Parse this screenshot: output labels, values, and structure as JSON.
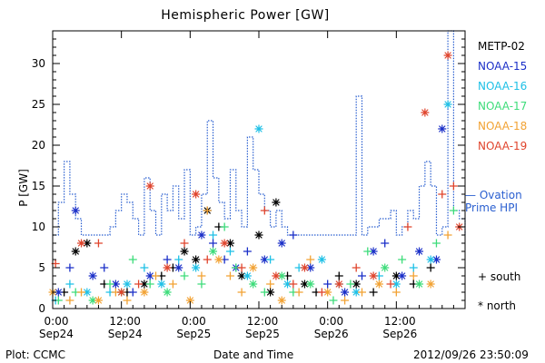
{
  "title": "Hemispheric Power [GW]",
  "ylabel": "P [GW]",
  "xlabel": "Date and Time",
  "plot_credit": "Plot: CCMC",
  "timestamp": "2012/09/26 23:50:09",
  "legend": {
    "satellites": [
      {
        "name": "METP-02",
        "color": "#000000"
      },
      {
        "name": "NOAA-15",
        "color": "#1a2fc8"
      },
      {
        "name": "NOAA-16",
        "color": "#1ec0e6"
      },
      {
        "name": "NOAA-17",
        "color": "#3ddc7a"
      },
      {
        "name": "NOAA-18",
        "color": "#f2a233"
      },
      {
        "name": "NOAA-19",
        "color": "#e0442c"
      }
    ],
    "ovation_line1": "— Ovation",
    "ovation_line2": "Prime HPI",
    "ovation_color": "#2a5fd0",
    "south": "+ south",
    "north": "* north"
  },
  "chart_data": {
    "type": "scatter",
    "title": "Hemispheric Power [GW]",
    "xlabel": "Date and Time",
    "ylabel": "P [GW]",
    "xlim": [
      0,
      72
    ],
    "ylim": [
      0,
      34
    ],
    "x_unit": "hours since 2012-09-24 00:00",
    "xticks": [
      {
        "x": 0,
        "line1": "0:00",
        "line2": "Sep24"
      },
      {
        "x": 12,
        "line1": "12:00",
        "line2": "Sep24"
      },
      {
        "x": 24,
        "line1": "0:00",
        "line2": "Sep25"
      },
      {
        "x": 36,
        "line1": "12:00",
        "line2": "Sep25"
      },
      {
        "x": 48,
        "line1": "0:00",
        "line2": "Sep26"
      },
      {
        "x": 60,
        "line1": "12:00",
        "line2": "Sep26"
      }
    ],
    "yticks": [
      0,
      5,
      10,
      15,
      20,
      25,
      30
    ],
    "ovation_prime_hpi": {
      "name": "Ovation Prime HPI",
      "x": [
        0,
        1,
        2,
        3,
        4,
        5,
        6,
        7,
        8,
        9,
        10,
        11,
        12,
        13,
        14,
        15,
        16,
        17,
        18,
        19,
        20,
        21,
        22,
        23,
        24,
        25,
        26,
        27,
        28,
        29,
        30,
        31,
        32,
        33,
        34,
        35,
        36,
        37,
        38,
        39,
        40,
        41,
        42,
        43,
        44,
        45,
        46,
        47,
        48,
        49,
        50,
        51,
        52,
        53,
        54,
        55,
        56,
        57,
        58,
        59,
        60,
        61,
        62,
        63,
        64,
        65,
        66,
        67,
        68,
        69,
        70,
        71,
        72
      ],
      "y": [
        9,
        13,
        18,
        14,
        11,
        9,
        9,
        9,
        9,
        9,
        10,
        12,
        14,
        13,
        11,
        9,
        16,
        12,
        9,
        14,
        12,
        15,
        11,
        17,
        9,
        10,
        14,
        23,
        16,
        13,
        11,
        17,
        12,
        10,
        21,
        17,
        14,
        12,
        10,
        12,
        10,
        9,
        9,
        9,
        9,
        9,
        9,
        9,
        9,
        9,
        9,
        9,
        9,
        26,
        9,
        10,
        10,
        11,
        11,
        12,
        9,
        10,
        12,
        11,
        15,
        18,
        15,
        9,
        10,
        34,
        12,
        11,
        9
      ]
    },
    "series": [
      {
        "name": "METP-02",
        "color": "#000000",
        "points": [
          {
            "x": 2,
            "y": 2,
            "h": "south"
          },
          {
            "x": 4,
            "y": 7,
            "h": "north"
          },
          {
            "x": 6,
            "y": 8,
            "h": "north"
          },
          {
            "x": 9,
            "y": 3,
            "h": "south"
          },
          {
            "x": 13,
            "y": 2,
            "h": "south"
          },
          {
            "x": 16,
            "y": 3,
            "h": "north"
          },
          {
            "x": 19,
            "y": 4,
            "h": "south"
          },
          {
            "x": 21,
            "y": 5,
            "h": "south"
          },
          {
            "x": 23,
            "y": 7,
            "h": "north"
          },
          {
            "x": 25,
            "y": 6,
            "h": "north"
          },
          {
            "x": 27,
            "y": 12,
            "h": "north"
          },
          {
            "x": 29,
            "y": 10,
            "h": "south"
          },
          {
            "x": 31,
            "y": 8,
            "h": "north"
          },
          {
            "x": 33,
            "y": 4,
            "h": "north"
          },
          {
            "x": 36,
            "y": 9,
            "h": "north"
          },
          {
            "x": 38,
            "y": 2,
            "h": "north"
          },
          {
            "x": 39,
            "y": 13,
            "h": "north"
          },
          {
            "x": 41,
            "y": 4,
            "h": "south"
          },
          {
            "x": 44,
            "y": 3,
            "h": "north"
          },
          {
            "x": 46,
            "y": 2,
            "h": "south"
          },
          {
            "x": 50,
            "y": 4,
            "h": "south"
          },
          {
            "x": 53,
            "y": 3,
            "h": "north"
          },
          {
            "x": 56,
            "y": 2,
            "h": "south"
          },
          {
            "x": 60,
            "y": 4,
            "h": "north"
          },
          {
            "x": 63,
            "y": 3,
            "h": "south"
          },
          {
            "x": 66,
            "y": 5,
            "h": "south"
          }
        ]
      },
      {
        "name": "NOAA-15",
        "color": "#1a2fc8",
        "points": [
          {
            "x": 1,
            "y": 2,
            "h": "north"
          },
          {
            "x": 3,
            "y": 5,
            "h": "south"
          },
          {
            "x": 4,
            "y": 12,
            "h": "north"
          },
          {
            "x": 7,
            "y": 4,
            "h": "north"
          },
          {
            "x": 9,
            "y": 5,
            "h": "south"
          },
          {
            "x": 11,
            "y": 3,
            "h": "north"
          },
          {
            "x": 14,
            "y": 2,
            "h": "south"
          },
          {
            "x": 17,
            "y": 4,
            "h": "north"
          },
          {
            "x": 20,
            "y": 6,
            "h": "south"
          },
          {
            "x": 22,
            "y": 5,
            "h": "north"
          },
          {
            "x": 26,
            "y": 9,
            "h": "north"
          },
          {
            "x": 28,
            "y": 8,
            "h": "south"
          },
          {
            "x": 30,
            "y": 6,
            "h": "south"
          },
          {
            "x": 32,
            "y": 5,
            "h": "north"
          },
          {
            "x": 34,
            "y": 7,
            "h": "south"
          },
          {
            "x": 37,
            "y": 6,
            "h": "north"
          },
          {
            "x": 40,
            "y": 8,
            "h": "north"
          },
          {
            "x": 42,
            "y": 9,
            "h": "south"
          },
          {
            "x": 45,
            "y": 5,
            "h": "north"
          },
          {
            "x": 48,
            "y": 3,
            "h": "south"
          },
          {
            "x": 51,
            "y": 2,
            "h": "north"
          },
          {
            "x": 54,
            "y": 4,
            "h": "south"
          },
          {
            "x": 56,
            "y": 7,
            "h": "north"
          },
          {
            "x": 58,
            "y": 8,
            "h": "south"
          },
          {
            "x": 61,
            "y": 4,
            "h": "north"
          },
          {
            "x": 64,
            "y": 7,
            "h": "north"
          },
          {
            "x": 67,
            "y": 6,
            "h": "north"
          },
          {
            "x": 68,
            "y": 22,
            "h": "north"
          }
        ]
      },
      {
        "name": "NOAA-16",
        "color": "#1ec0e6",
        "points": [
          {
            "x": 0.5,
            "y": 1,
            "h": "south"
          },
          {
            "x": 3,
            "y": 3,
            "h": "south"
          },
          {
            "x": 6,
            "y": 2,
            "h": "north"
          },
          {
            "x": 10,
            "y": 2,
            "h": "south"
          },
          {
            "x": 13,
            "y": 3,
            "h": "north"
          },
          {
            "x": 16,
            "y": 5,
            "h": "south"
          },
          {
            "x": 19,
            "y": 3,
            "h": "north"
          },
          {
            "x": 22,
            "y": 6,
            "h": "south"
          },
          {
            "x": 25,
            "y": 5,
            "h": "north"
          },
          {
            "x": 28,
            "y": 9,
            "h": "south"
          },
          {
            "x": 31,
            "y": 7,
            "h": "south"
          },
          {
            "x": 34,
            "y": 4,
            "h": "north"
          },
          {
            "x": 36,
            "y": 22,
            "h": "north"
          },
          {
            "x": 38,
            "y": 6,
            "h": "south"
          },
          {
            "x": 41,
            "y": 3,
            "h": "north"
          },
          {
            "x": 43,
            "y": 5,
            "h": "south"
          },
          {
            "x": 47,
            "y": 6,
            "h": "north"
          },
          {
            "x": 50,
            "y": 3,
            "h": "south"
          },
          {
            "x": 53,
            "y": 2,
            "h": "north"
          },
          {
            "x": 57,
            "y": 4,
            "h": "south"
          },
          {
            "x": 60,
            "y": 3,
            "h": "north"
          },
          {
            "x": 63,
            "y": 5,
            "h": "south"
          },
          {
            "x": 66,
            "y": 6,
            "h": "north"
          },
          {
            "x": 69,
            "y": 25,
            "h": "north"
          }
        ]
      },
      {
        "name": "NOAA-17",
        "color": "#3ddc7a",
        "points": [
          {
            "x": 1,
            "y": 1,
            "h": "south"
          },
          {
            "x": 4,
            "y": 2,
            "h": "south"
          },
          {
            "x": 7,
            "y": 1,
            "h": "north"
          },
          {
            "x": 10,
            "y": 3,
            "h": "south"
          },
          {
            "x": 12,
            "y": 2,
            "h": "north"
          },
          {
            "x": 14,
            "y": 6,
            "h": "south"
          },
          {
            "x": 17,
            "y": 3,
            "h": "south"
          },
          {
            "x": 20,
            "y": 2,
            "h": "north"
          },
          {
            "x": 23,
            "y": 4,
            "h": "south"
          },
          {
            "x": 26,
            "y": 3,
            "h": "south"
          },
          {
            "x": 28,
            "y": 7,
            "h": "north"
          },
          {
            "x": 30,
            "y": 10,
            "h": "south"
          },
          {
            "x": 32,
            "y": 5,
            "h": "south"
          },
          {
            "x": 35,
            "y": 3,
            "h": "north"
          },
          {
            "x": 37,
            "y": 2,
            "h": "south"
          },
          {
            "x": 40,
            "y": 4,
            "h": "north"
          },
          {
            "x": 42,
            "y": 2,
            "h": "south"
          },
          {
            "x": 45,
            "y": 3,
            "h": "north"
          },
          {
            "x": 49,
            "y": 1,
            "h": "south"
          },
          {
            "x": 52,
            "y": 3,
            "h": "south"
          },
          {
            "x": 55,
            "y": 7,
            "h": "south"
          },
          {
            "x": 58,
            "y": 5,
            "h": "north"
          },
          {
            "x": 61,
            "y": 6,
            "h": "south"
          },
          {
            "x": 64,
            "y": 3,
            "h": "north"
          },
          {
            "x": 67,
            "y": 8,
            "h": "south"
          },
          {
            "x": 70,
            "y": 12,
            "h": "south"
          }
        ]
      },
      {
        "name": "NOAA-18",
        "color": "#f2a233",
        "points": [
          {
            "x": 0,
            "y": 2,
            "h": "north"
          },
          {
            "x": 3,
            "y": 1,
            "h": "south"
          },
          {
            "x": 5,
            "y": 2,
            "h": "south"
          },
          {
            "x": 8,
            "y": 1,
            "h": "north"
          },
          {
            "x": 11,
            "y": 2,
            "h": "south"
          },
          {
            "x": 13,
            "y": 1,
            "h": "south"
          },
          {
            "x": 16,
            "y": 2,
            "h": "north"
          },
          {
            "x": 18,
            "y": 4,
            "h": "south"
          },
          {
            "x": 21,
            "y": 3,
            "h": "south"
          },
          {
            "x": 24,
            "y": 1,
            "h": "north"
          },
          {
            "x": 26,
            "y": 4,
            "h": "south"
          },
          {
            "x": 27,
            "y": 12,
            "h": "south"
          },
          {
            "x": 29,
            "y": 6,
            "h": "north"
          },
          {
            "x": 31,
            "y": 4,
            "h": "south"
          },
          {
            "x": 33,
            "y": 2,
            "h": "south"
          },
          {
            "x": 35,
            "y": 5,
            "h": "north"
          },
          {
            "x": 38,
            "y": 3,
            "h": "south"
          },
          {
            "x": 40,
            "y": 1,
            "h": "north"
          },
          {
            "x": 43,
            "y": 2,
            "h": "south"
          },
          {
            "x": 45,
            "y": 6,
            "h": "south"
          },
          {
            "x": 48,
            "y": 2,
            "h": "north"
          },
          {
            "x": 51,
            "y": 1,
            "h": "south"
          },
          {
            "x": 54,
            "y": 2,
            "h": "south"
          },
          {
            "x": 57,
            "y": 3,
            "h": "north"
          },
          {
            "x": 60,
            "y": 2,
            "h": "south"
          },
          {
            "x": 63,
            "y": 4,
            "h": "south"
          },
          {
            "x": 66,
            "y": 3,
            "h": "north"
          },
          {
            "x": 69,
            "y": 9,
            "h": "south"
          }
        ]
      },
      {
        "name": "NOAA-19",
        "color": "#e0442c",
        "points": [
          {
            "x": 0.5,
            "y": 5.5,
            "h": "south"
          },
          {
            "x": 5,
            "y": 8,
            "h": "north"
          },
          {
            "x": 8,
            "y": 8,
            "h": "south"
          },
          {
            "x": 12,
            "y": 2,
            "h": "north"
          },
          {
            "x": 15,
            "y": 3,
            "h": "south"
          },
          {
            "x": 17,
            "y": 15,
            "h": "north"
          },
          {
            "x": 20,
            "y": 5,
            "h": "north"
          },
          {
            "x": 23,
            "y": 8,
            "h": "south"
          },
          {
            "x": 25,
            "y": 14,
            "h": "north"
          },
          {
            "x": 27,
            "y": 6,
            "h": "south"
          },
          {
            "x": 30,
            "y": 8,
            "h": "north"
          },
          {
            "x": 33,
            "y": 5,
            "h": "south"
          },
          {
            "x": 37,
            "y": 12,
            "h": "south"
          },
          {
            "x": 39,
            "y": 4,
            "h": "north"
          },
          {
            "x": 42,
            "y": 3,
            "h": "south"
          },
          {
            "x": 44,
            "y": 5,
            "h": "north"
          },
          {
            "x": 47,
            "y": 2,
            "h": "south"
          },
          {
            "x": 50,
            "y": 3,
            "h": "north"
          },
          {
            "x": 53,
            "y": 5,
            "h": "south"
          },
          {
            "x": 56,
            "y": 4,
            "h": "north"
          },
          {
            "x": 59,
            "y": 3,
            "h": "south"
          },
          {
            "x": 62,
            "y": 10,
            "h": "south"
          },
          {
            "x": 65,
            "y": 24,
            "h": "north"
          },
          {
            "x": 68,
            "y": 14,
            "h": "south"
          },
          {
            "x": 69,
            "y": 31,
            "h": "north"
          },
          {
            "x": 70,
            "y": 15,
            "h": "south"
          },
          {
            "x": 71,
            "y": 10,
            "h": "north"
          }
        ]
      }
    ]
  }
}
